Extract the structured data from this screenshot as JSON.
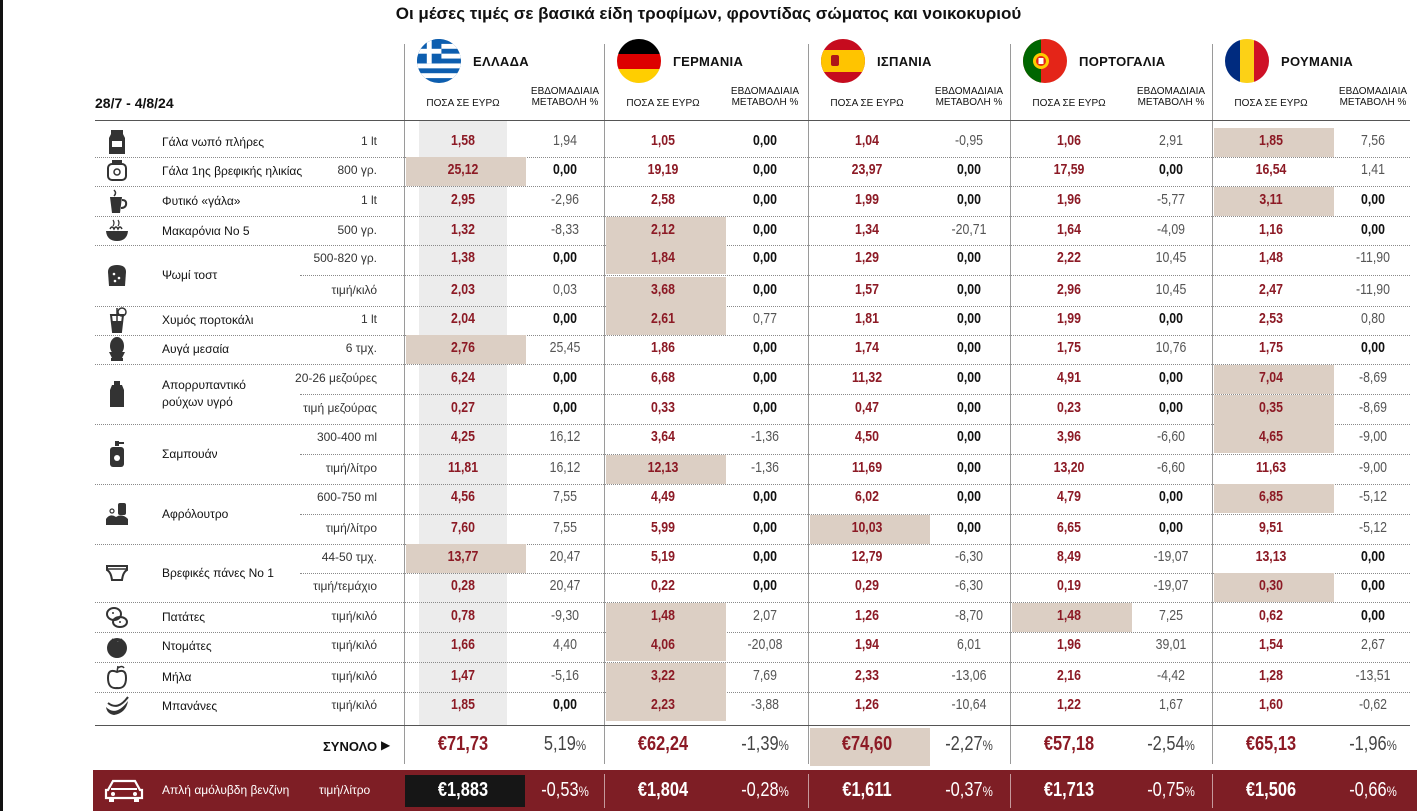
{
  "title": "Οι μέσες τιμές σε βασικά είδη τροφίμων, φροντίδας σώματος και νοικοκυριού",
  "date_range": "28/7 - 4/8/24",
  "col_headers": {
    "price": "ΠΟΣΑ ΣΕ ΕΥΡΩ",
    "change_line1": "ΕΒΔΟΜΑΔΙΑΙΑ",
    "change_line2": "ΜΕΤΑΒΟΛΗ %"
  },
  "countries": [
    {
      "name": "ΕΛΛΑΔΑ",
      "flag": "greece-flag-icon"
    },
    {
      "name": "ΓΕΡΜΑΝΙΑ",
      "flag": "germany-flag-icon"
    },
    {
      "name": "ΙΣΠΑΝΙΑ",
      "flag": "spain-flag-icon"
    },
    {
      "name": "ΠΟΡΤΟΓΑΛΙΑ",
      "flag": "portugal-flag-icon"
    },
    {
      "name": "ΡΟΥΜΑΝΙΑ",
      "flag": "romania-flag-icon"
    }
  ],
  "products": [
    {
      "name": "Γάλα νωπό πλήρες",
      "icon": "milk-carton-icon",
      "rows": [
        {
          "unit": "1 lt",
          "values": [
            [
              "1,58",
              "1,94"
            ],
            [
              "1,05",
              "0,00"
            ],
            [
              "1,04",
              "-0,95"
            ],
            [
              "1,06",
              "2,91"
            ],
            [
              "1,85",
              "7,56"
            ]
          ],
          "highlight": 4
        }
      ]
    },
    {
      "name": "Γάλα 1ης βρεφικής ηλικίας",
      "icon": "baby-formula-icon",
      "rows": [
        {
          "unit": "800 γρ.",
          "values": [
            [
              "25,12",
              "0,00"
            ],
            [
              "19,19",
              "0,00"
            ],
            [
              "23,97",
              "0,00"
            ],
            [
              "17,59",
              "0,00"
            ],
            [
              "16,54",
              "1,41"
            ]
          ],
          "highlight": 0
        }
      ]
    },
    {
      "name": "Φυτικό «γάλα»",
      "icon": "plant-milk-cup-icon",
      "rows": [
        {
          "unit": "1 lt",
          "values": [
            [
              "2,95",
              "-2,96"
            ],
            [
              "2,58",
              "0,00"
            ],
            [
              "1,99",
              "0,00"
            ],
            [
              "1,96",
              "-5,77"
            ],
            [
              "3,11",
              "0,00"
            ]
          ],
          "highlight": 4
        }
      ]
    },
    {
      "name": "Μακαρόνια Νο 5",
      "icon": "pasta-bowl-icon",
      "rows": [
        {
          "unit": "500 γρ.",
          "values": [
            [
              "1,32",
              "-8,33"
            ],
            [
              "2,12",
              "0,00"
            ],
            [
              "1,34",
              "-20,71"
            ],
            [
              "1,64",
              "-4,09"
            ],
            [
              "1,16",
              "0,00"
            ]
          ],
          "highlight": 1
        }
      ]
    },
    {
      "name": "Ψωμί τοστ",
      "icon": "toast-bread-icon",
      "rows": [
        {
          "unit": "500-820 γρ.",
          "values": [
            [
              "1,38",
              "0,00"
            ],
            [
              "1,84",
              "0,00"
            ],
            [
              "1,29",
              "0,00"
            ],
            [
              "2,22",
              "10,45"
            ],
            [
              "1,48",
              "-11,90"
            ]
          ],
          "highlight": 1
        },
        {
          "unit": "τιμή/κιλό",
          "values": [
            [
              "2,03",
              "0,03"
            ],
            [
              "3,68",
              "0,00"
            ],
            [
              "1,57",
              "0,00"
            ],
            [
              "2,96",
              "10,45"
            ],
            [
              "2,47",
              "-11,90"
            ]
          ],
          "highlight": 1
        }
      ]
    },
    {
      "name": "Χυμός πορτοκάλι",
      "icon": "orange-juice-icon",
      "rows": [
        {
          "unit": "1 lt",
          "values": [
            [
              "2,04",
              "0,00"
            ],
            [
              "2,61",
              "0,77"
            ],
            [
              "1,81",
              "0,00"
            ],
            [
              "1,99",
              "0,00"
            ],
            [
              "2,53",
              "0,80"
            ]
          ],
          "highlight": 1
        }
      ]
    },
    {
      "name": "Αυγά μεσαία",
      "icon": "egg-icon",
      "rows": [
        {
          "unit": "6 τμχ.",
          "values": [
            [
              "2,76",
              "25,45"
            ],
            [
              "1,86",
              "0,00"
            ],
            [
              "1,74",
              "0,00"
            ],
            [
              "1,75",
              "10,76"
            ],
            [
              "1,75",
              "0,00"
            ]
          ],
          "highlight": 0
        }
      ]
    },
    {
      "name": "Απορρυπαντικό ρούχων υγρό",
      "icon": "detergent-bottle-icon",
      "rows": [
        {
          "unit": "20-26 μεζούρες",
          "values": [
            [
              "6,24",
              "0,00"
            ],
            [
              "6,68",
              "0,00"
            ],
            [
              "11,32",
              "0,00"
            ],
            [
              "4,91",
              "0,00"
            ],
            [
              "7,04",
              "-8,69"
            ]
          ],
          "highlight": 4
        },
        {
          "unit": "τιμή μεζούρας",
          "values": [
            [
              "0,27",
              "0,00"
            ],
            [
              "0,33",
              "0,00"
            ],
            [
              "0,47",
              "0,00"
            ],
            [
              "0,23",
              "0,00"
            ],
            [
              "0,35",
              "-8,69"
            ]
          ],
          "highlight": 4
        }
      ]
    },
    {
      "name": "Σαμπουάν",
      "icon": "shampoo-bottle-icon",
      "rows": [
        {
          "unit": "300-400 ml",
          "values": [
            [
              "4,25",
              "16,12"
            ],
            [
              "3,64",
              "-1,36"
            ],
            [
              "4,50",
              "0,00"
            ],
            [
              "3,96",
              "-6,60"
            ],
            [
              "4,65",
              "-9,00"
            ]
          ],
          "highlight": 4
        },
        {
          "unit": "τιμή/λίτρο",
          "values": [
            [
              "11,81",
              "16,12"
            ],
            [
              "12,13",
              "-1,36"
            ],
            [
              "11,69",
              "0,00"
            ],
            [
              "13,20",
              "-6,60"
            ],
            [
              "11,63",
              "-9,00"
            ]
          ],
          "highlight": 1
        }
      ]
    },
    {
      "name": "Αφρόλουτρο",
      "icon": "shower-gel-icon",
      "rows": [
        {
          "unit": "600-750 ml",
          "values": [
            [
              "4,56",
              "7,55"
            ],
            [
              "4,49",
              "0,00"
            ],
            [
              "6,02",
              "0,00"
            ],
            [
              "4,79",
              "0,00"
            ],
            [
              "6,85",
              "-5,12"
            ]
          ],
          "highlight": 4
        },
        {
          "unit": "τιμή/λίτρο",
          "values": [
            [
              "7,60",
              "7,55"
            ],
            [
              "5,99",
              "0,00"
            ],
            [
              "10,03",
              "0,00"
            ],
            [
              "6,65",
              "0,00"
            ],
            [
              "9,51",
              "-5,12"
            ]
          ],
          "highlight": 2
        }
      ]
    },
    {
      "name": "Βρεφικές πάνες Νο 1",
      "icon": "diaper-icon",
      "rows": [
        {
          "unit": "44-50 τμχ.",
          "values": [
            [
              "13,77",
              "20,47"
            ],
            [
              "5,19",
              "0,00"
            ],
            [
              "12,79",
              "-6,30"
            ],
            [
              "8,49",
              "-19,07"
            ],
            [
              "13,13",
              "0,00"
            ]
          ],
          "highlight": 0
        },
        {
          "unit": "τιμή/τεμάχιο",
          "values": [
            [
              "0,28",
              "20,47"
            ],
            [
              "0,22",
              "0,00"
            ],
            [
              "0,29",
              "-6,30"
            ],
            [
              "0,19",
              "-19,07"
            ],
            [
              "0,30",
              "0,00"
            ]
          ],
          "highlight": 4
        }
      ]
    },
    {
      "name": "Πατάτες",
      "icon": "potato-icon",
      "rows": [
        {
          "unit": "τιμή/κιλό",
          "values": [
            [
              "0,78",
              "-9,30"
            ],
            [
              "1,48",
              "2,07"
            ],
            [
              "1,26",
              "-8,70"
            ],
            [
              "1,48",
              "7,25"
            ],
            [
              "0,62",
              "0,00"
            ]
          ],
          "highlight": [
            1,
            3
          ]
        }
      ]
    },
    {
      "name": "Ντομάτες",
      "icon": "tomato-icon",
      "rows": [
        {
          "unit": "τιμή/κιλό",
          "values": [
            [
              "1,66",
              "4,40"
            ],
            [
              "4,06",
              "-20,08"
            ],
            [
              "1,94",
              "6,01"
            ],
            [
              "1,96",
              "39,01"
            ],
            [
              "1,54",
              "2,67"
            ]
          ],
          "highlight": 1
        }
      ]
    },
    {
      "name": "Μήλα",
      "icon": "apple-icon",
      "rows": [
        {
          "unit": "τιμή/κιλό",
          "values": [
            [
              "1,47",
              "-5,16"
            ],
            [
              "3,22",
              "7,69"
            ],
            [
              "2,33",
              "-13,06"
            ],
            [
              "2,16",
              "-4,42"
            ],
            [
              "1,28",
              "-13,51"
            ]
          ],
          "highlight": 1
        }
      ]
    },
    {
      "name": "Μπανάνες",
      "icon": "banana-icon",
      "rows": [
        {
          "unit": "τιμή/κιλό",
          "values": [
            [
              "1,85",
              "0,00"
            ],
            [
              "2,23",
              "-3,88"
            ],
            [
              "1,26",
              "-10,64"
            ],
            [
              "1,22",
              "1,67"
            ],
            [
              "1,60",
              "-0,62"
            ]
          ],
          "highlight": 1
        }
      ]
    }
  ],
  "total": {
    "label": "ΣΥΝΟΛΟ",
    "arrow": "▶",
    "values": [
      [
        "€71,73",
        "5,19",
        "%"
      ],
      [
        "€62,24",
        "-1,39",
        "%"
      ],
      [
        "€74,60",
        "-2,27",
        "%"
      ],
      [
        "€57,18",
        "-2,54",
        "%"
      ],
      [
        "€65,13",
        "-1,96",
        "%"
      ]
    ],
    "highlight": 2
  },
  "fuel": {
    "label": "Αμόλυβδη βενζίνη",
    "label_prefix": "Απλή",
    "unit": "τιμή/λίτρο",
    "icon": "car-icon",
    "values": [
      [
        "€1,883",
        "-0,53",
        "%"
      ],
      [
        "€1,804",
        "-0,28",
        "%"
      ],
      [
        "€1,611",
        "-0,37",
        "%"
      ],
      [
        "€1,713",
        "-0,75",
        "%"
      ],
      [
        "€1,506",
        "-0,66",
        "%"
      ]
    ],
    "highlight": 0
  },
  "colors": {
    "price_red": "#8c1a25",
    "highlight_beige": "#dccfc4",
    "fuel_band": "#7e1e25",
    "greece_column_grey": "#ececec"
  }
}
